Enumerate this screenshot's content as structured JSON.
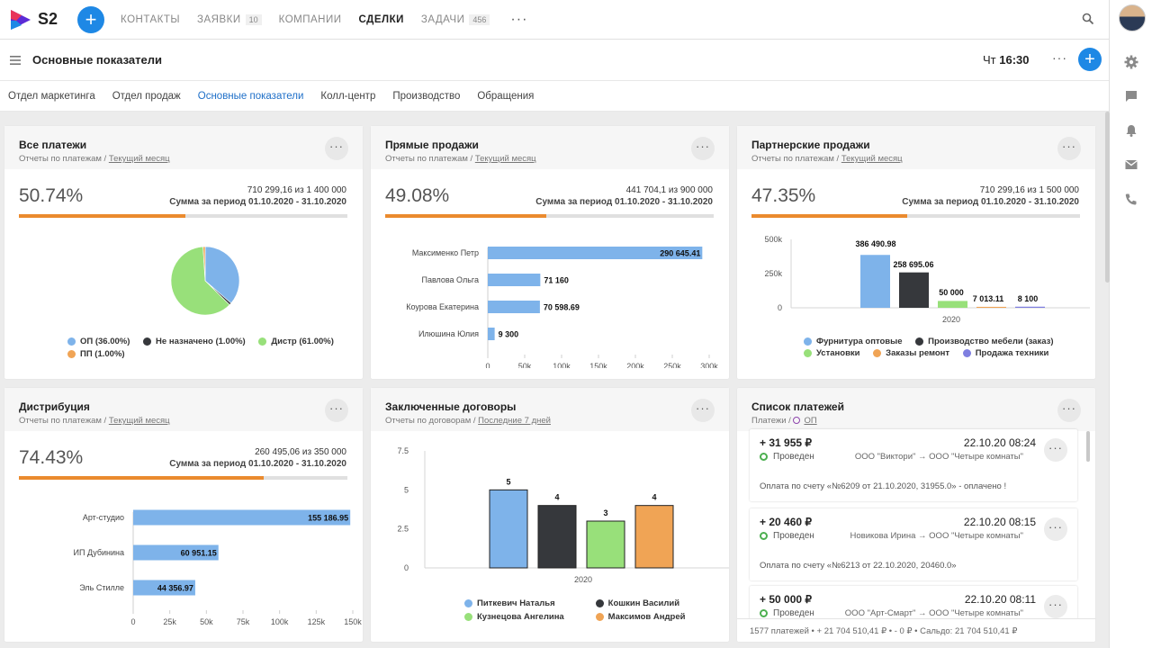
{
  "app": {
    "logo_text": "S2",
    "add_label": "+"
  },
  "nav": {
    "items": [
      {
        "label": "Контакты",
        "badge": ""
      },
      {
        "label": "Заявки",
        "badge": "10"
      },
      {
        "label": "Компании",
        "badge": ""
      },
      {
        "label": "Сделки",
        "badge": ""
      },
      {
        "label": "Задачи",
        "badge": "456"
      }
    ],
    "more": "···",
    "active_index": 3
  },
  "header": {
    "title": "Основные показатели",
    "day": "Чт",
    "time": "16:30",
    "more": "···",
    "add_label": "+"
  },
  "tabs": {
    "items": [
      "Отдел маркетинга",
      "Отдел продаж",
      "Основные показатели",
      "Колл-центр",
      "Производство",
      "Обращения"
    ],
    "active_index": 2
  },
  "icons": {
    "search": "search-icon",
    "settings": "gear-icon",
    "chat": "chat-icon",
    "bell": "bell-icon",
    "mail": "mail-icon",
    "phone": "phone-icon",
    "menu": "hamburger-icon"
  },
  "colors": {
    "accent": "#1e88e5",
    "progress": "#ea8a2e",
    "blue": "#7eb3ea",
    "black": "#36383c",
    "green": "#98e07a",
    "orange": "#f0a455",
    "purple": "#7f7fe0"
  },
  "cards": {
    "all": {
      "title": "Все платежи",
      "sub_prefix": "Отчеты по платежам / ",
      "sub_link": "Текущий месяц",
      "percent": "50.74%",
      "progress": 0.5074,
      "amount_line": "710 299,16 из 1 400 000",
      "period_line": "Сумма за период 01.10.2020 - 31.10.2020",
      "legend": [
        {
          "label": "ОП (36.00%)",
          "color": "#7eb3ea"
        },
        {
          "label": "Не назначено (1.00%)",
          "color": "#36383c"
        },
        {
          "label": "Дистр (61.00%)",
          "color": "#98e07a"
        },
        {
          "label": "ПП (1.00%)",
          "color": "#f0a455"
        }
      ]
    },
    "direct": {
      "title": "Прямые продажи",
      "sub_prefix": "Отчеты по платежам / ",
      "sub_link": "Текущий месяц",
      "percent": "49.08%",
      "progress": 0.4908,
      "amount_line": "441 704,1 из 900 000",
      "period_line": "Сумма за период 01.10.2020 - 31.10.2020"
    },
    "partner": {
      "title": "Партнерские продажи",
      "sub_prefix": "Отчеты по платежам / ",
      "sub_link": "Текущий месяц",
      "percent": "47.35%",
      "progress": 0.4735,
      "amount_line": "710 299,16 из 1 500 000",
      "period_line": "Сумма за период 01.10.2020 - 31.10.2020",
      "legend": [
        {
          "label": "Фурнитура оптовые",
          "color": "#7eb3ea"
        },
        {
          "label": "Производство мебели (заказ)",
          "color": "#36383c"
        },
        {
          "label": "Установки",
          "color": "#98e07a"
        },
        {
          "label": "Заказы ремонт",
          "color": "#f0a455"
        },
        {
          "label": "Продажа техники",
          "color": "#7f7fe0"
        }
      ]
    },
    "distrib": {
      "title": "Дистрибуция",
      "sub_prefix": "Отчеты по платежам / ",
      "sub_link": "Текущий месяц",
      "percent": "74.43%",
      "progress": 0.7443,
      "amount_line": "260 495,06 из 350 000",
      "period_line": "Сумма за период 01.10.2020 - 31.10.2020"
    },
    "contracts": {
      "title": "Заключенные договоры",
      "sub_prefix": "Отчеты по договорам / ",
      "sub_link": "Последние 7 дней",
      "legend": [
        {
          "label": "Питкевич Наталья",
          "color": "#7eb3ea"
        },
        {
          "label": "Кошкин Василий",
          "color": "#36383c"
        },
        {
          "label": "Кузнецова Ангелина",
          "color": "#98e07a"
        },
        {
          "label": "Максимов Андрей",
          "color": "#f0a455"
        }
      ]
    },
    "payments": {
      "title": "Список платежей",
      "sub_prefix": "Платежи / ",
      "sub_link": "ОП",
      "items": [
        {
          "amount": "+ 31 955 ₽",
          "date": "22.10.20 08:24",
          "status": "Проведен",
          "from": "ООО \"Виктори\"",
          "to": "ООО \"Четыре комнаты\"",
          "note": "Оплата по счету «№6209 от 21.10.2020, 31955.0» - оплачено !"
        },
        {
          "amount": "+ 20 460 ₽",
          "date": "22.10.20 08:15",
          "status": "Проведен",
          "from": "Новикова Ирина",
          "to": "ООО \"Четыре комнаты\"",
          "note": "Оплата по счету «№6213 от 22.10.2020, 20460.0»"
        },
        {
          "amount": "+ 50 000 ₽",
          "date": "22.10.20 08:11",
          "status": "Проведен",
          "from": "ООО \"Арт-Смарт\"",
          "to": "ООО \"Четыре комнаты\"",
          "note": ""
        }
      ],
      "arrow": "→",
      "footer": "1577 платежей  •  + 21 704 510,41 ₽  •  - 0 ₽  •  Сальдо: 21 704 510,41 ₽"
    }
  },
  "chart_data": [
    {
      "type": "pie",
      "title": "Все платежи",
      "slices": [
        {
          "label": "ОП",
          "value": 36.0
        },
        {
          "label": "Не назначено",
          "value": 1.0
        },
        {
          "label": "Дистр",
          "value": 61.0
        },
        {
          "label": "ПП",
          "value": 1.0
        }
      ]
    },
    {
      "type": "bar",
      "orientation": "horizontal",
      "title": "Прямые продажи",
      "categories": [
        "Максименко Петр",
        "Павлова Ольга",
        "Коурова Екатерина",
        "Илюшина Юлия"
      ],
      "values": [
        290645.41,
        71160,
        70598.69,
        9300
      ],
      "labels": [
        "290 645.41",
        "71 160",
        "70 598.69",
        "9 300"
      ],
      "xticks": [
        "0",
        "50k",
        "100k",
        "150k",
        "200k",
        "250k",
        "300k"
      ],
      "xlim": [
        0,
        300000
      ]
    },
    {
      "type": "bar",
      "title": "Партнерские продажи",
      "categories": [
        "2020"
      ],
      "series": [
        {
          "name": "Фурнитура оптовые",
          "values": [
            386490.98
          ],
          "label": "386 490.98"
        },
        {
          "name": "Производство мебели (заказ)",
          "values": [
            258695.06
          ],
          "label": "258 695.06"
        },
        {
          "name": "Установки",
          "values": [
            50000
          ],
          "label": "50 000"
        },
        {
          "name": "Заказы ремонт",
          "values": [
            7013.11
          ],
          "label": "7 013.11"
        },
        {
          "name": "Продажа техники",
          "values": [
            8100
          ],
          "label": "8 100"
        }
      ],
      "yticks": [
        "500k",
        "250k",
        "0"
      ],
      "ylim": [
        0,
        500000
      ]
    },
    {
      "type": "bar",
      "orientation": "horizontal",
      "title": "Дистрибуция",
      "categories": [
        "Арт-студио",
        "ИП Дубинина",
        "Эль Стилле"
      ],
      "values": [
        155186.95,
        60951.15,
        44356.97
      ],
      "labels": [
        "155 186.95",
        "60 951.15",
        "44 356.97"
      ],
      "xticks": [
        "0",
        "25k",
        "50k",
        "75k",
        "100k",
        "125k",
        "150k"
      ],
      "xlim": [
        0,
        157000
      ]
    },
    {
      "type": "bar",
      "title": "Заключенные договоры",
      "categories": [
        "2020"
      ],
      "series": [
        {
          "name": "Питкевич Наталья",
          "values": [
            5
          ],
          "label": "5"
        },
        {
          "name": "Кошкин Василий",
          "values": [
            4
          ],
          "label": "4"
        },
        {
          "name": "Кузнецова Ангелина",
          "values": [
            3
          ],
          "label": "3"
        },
        {
          "name": "Максимов Андрей",
          "values": [
            4
          ],
          "label": "4"
        }
      ],
      "yticks": [
        "7.5",
        "5",
        "2.5",
        "0"
      ],
      "ylim": [
        0,
        7.5
      ]
    }
  ]
}
